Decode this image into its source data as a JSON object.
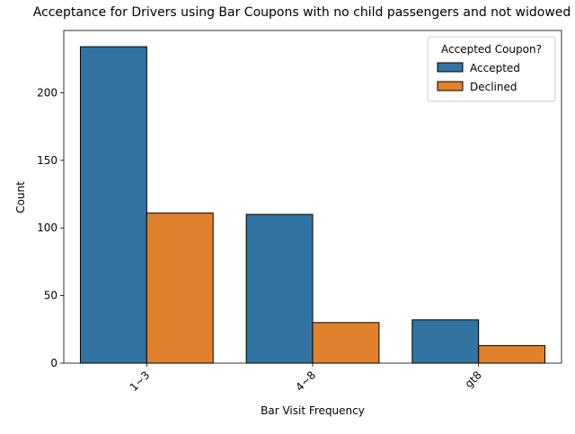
{
  "chart_data": {
    "type": "bar",
    "title": "Acceptance for Drivers using Bar Coupons with no child passengers and not widowed",
    "xlabel": "Bar Visit Frequency",
    "ylabel": "Count",
    "categories": [
      "1~3",
      "4~8",
      "gt8"
    ],
    "series": [
      {
        "name": "Accepted",
        "values": [
          234,
          110,
          32
        ],
        "color": "#3274a1"
      },
      {
        "name": "Declined",
        "values": [
          111,
          30,
          13
        ],
        "color": "#e1812c"
      }
    ],
    "ylim": [
      0,
      246
    ],
    "yticks": [
      0,
      50,
      100,
      150,
      200
    ],
    "xtick_rotation": 45,
    "grid": false,
    "legend": {
      "title": "Accepted Coupon?",
      "placement": "top-right",
      "entries": [
        "Accepted",
        "Declined"
      ]
    }
  }
}
